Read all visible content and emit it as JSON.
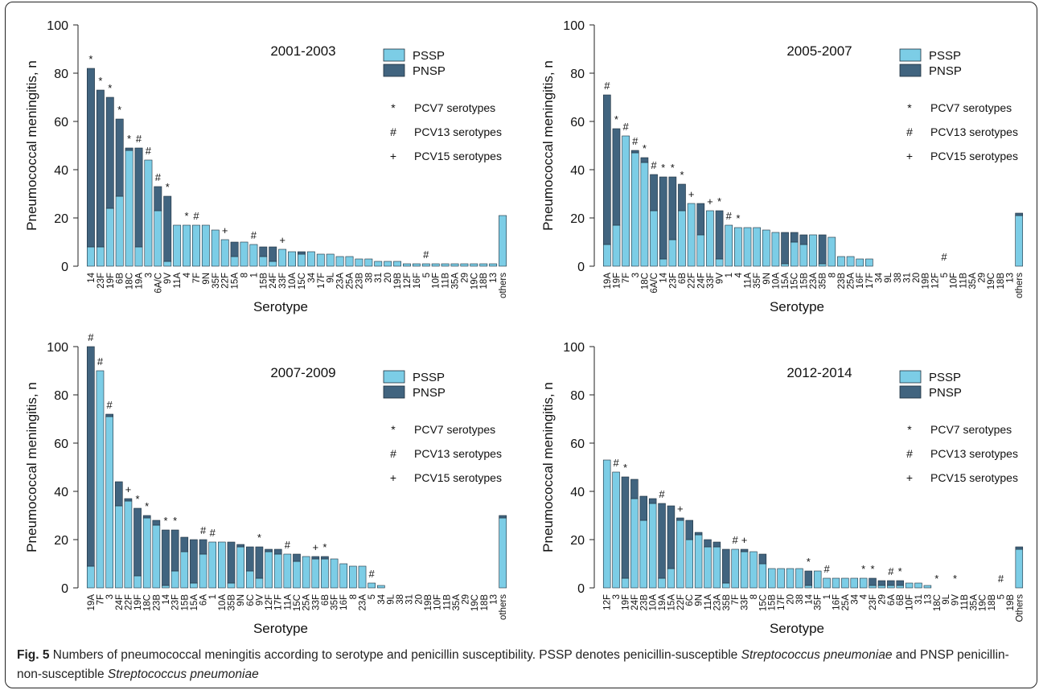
{
  "colors": {
    "pssp": "#7ccde6",
    "pnsp": "#41647f",
    "stroke": "#1f2f3d"
  },
  "caption": {
    "label": "Fig. 5",
    "p1": " Numbers of pneumococcal meningitis according to serotype and penicillin susceptibility. PSSP denotes penicillin-susceptible ",
    "i1": "Streptococcus pneumoniae",
    "p2": " and PNSP penicillin-non-susceptible ",
    "i2": "Streptococcus pneumoniae"
  },
  "chart_data": [
    {
      "type": "bar",
      "stacked": true,
      "title": "2001-2003",
      "xlabel": "Serotype",
      "ylabel": "Pneumococcal meningitis, n",
      "ylim": [
        0,
        100
      ],
      "yticks": [
        0,
        20,
        40,
        60,
        80,
        100
      ],
      "legend": {
        "series": [
          "PSSP",
          "PNSP"
        ],
        "markers": [
          {
            "sym": "*",
            "label": "PCV7 serotypes"
          },
          {
            "sym": "#",
            "label": "PCV13 serotypes"
          },
          {
            "sym": "+",
            "label": "PCV15 serotypes"
          }
        ]
      },
      "categories": [
        "14",
        "23F",
        "19F",
        "6B",
        "18C",
        "19A",
        "3",
        "6A/C",
        "9V",
        "11A",
        "4",
        "7F",
        "9N",
        "35F",
        "22F",
        "15A",
        "8",
        "1",
        "15B",
        "24F",
        "33F",
        "10A",
        "15C",
        "34",
        "17F",
        "9L",
        "23A",
        "25A",
        "23B",
        "38",
        "31",
        "20",
        "19B",
        "12F",
        "16F",
        "5",
        "10F",
        "11B",
        "35A",
        "29",
        "19C",
        "18B",
        "13",
        "others"
      ],
      "series": [
        {
          "name": "PSSP",
          "values": [
            8,
            8,
            24,
            29,
            48,
            8,
            44,
            23,
            2,
            17,
            17,
            17,
            17,
            15,
            11,
            4,
            10,
            9,
            4,
            2,
            7,
            6,
            5,
            6,
            5,
            5,
            4,
            4,
            3,
            3,
            2,
            2,
            2,
            1,
            1,
            1,
            1,
            1,
            1,
            1,
            1,
            1,
            1,
            21
          ]
        },
        {
          "name": "PNSP",
          "values": [
            74,
            65,
            46,
            32,
            1,
            41,
            0,
            10,
            27,
            0,
            0,
            0,
            0,
            0,
            0,
            6,
            0,
            0,
            4,
            6,
            0,
            0,
            1,
            0,
            0,
            0,
            0,
            0,
            0,
            0,
            0,
            0,
            0,
            0,
            0,
            0,
            0,
            0,
            0,
            0,
            0,
            0,
            0,
            0
          ]
        }
      ],
      "markers": [
        "*",
        "*",
        "*",
        "*",
        "*",
        "#",
        "#",
        "#",
        "*",
        "",
        "*",
        "#",
        "",
        "",
        "+",
        "",
        "",
        "#",
        "",
        "",
        "+",
        "",
        "",
        "",
        "",
        "",
        "",
        "",
        "",
        "",
        "",
        "",
        "",
        "",
        "",
        "#",
        "",
        "",
        "",
        "",
        "",
        "",
        "",
        ""
      ]
    },
    {
      "type": "bar",
      "stacked": true,
      "title": "2005-2007",
      "xlabel": "Serotype",
      "ylabel": "Pneumococcal meningitis, n",
      "ylim": [
        0,
        100
      ],
      "yticks": [
        0,
        20,
        40,
        60,
        80,
        100
      ],
      "legend": {
        "series": [
          "PSSP",
          "PNSP"
        ],
        "markers": [
          {
            "sym": "*",
            "label": "PCV7 serotypes"
          },
          {
            "sym": "#",
            "label": "PCV13 serotypes"
          },
          {
            "sym": "+",
            "label": "PCV15 serotypes"
          }
        ]
      },
      "categories": [
        "19A",
        "19F",
        "7F",
        "3",
        "18C",
        "6A/C",
        "14",
        "23F",
        "6B",
        "22F",
        "24F",
        "33F",
        "9V",
        "1",
        "4",
        "11A",
        "35F",
        "9N",
        "10A",
        "15A",
        "15C",
        "15B",
        "23A",
        "35B",
        "8",
        "23B",
        "25A",
        "16F",
        "17F",
        "34",
        "9L",
        "38",
        "31",
        "20",
        "19B",
        "12F",
        "5",
        "10F",
        "11B",
        "35A",
        "29",
        "19C",
        "18B",
        "13",
        "others"
      ],
      "series": [
        {
          "name": "PSSP",
          "values": [
            9,
            17,
            54,
            47,
            43,
            23,
            3,
            11,
            23,
            26,
            13,
            23,
            3,
            17,
            16,
            16,
            16,
            15,
            14,
            1,
            10,
            9,
            13,
            1,
            12,
            4,
            4,
            3,
            3,
            0,
            0,
            0,
            0,
            0,
            0,
            0,
            0,
            0,
            0,
            0,
            0,
            0,
            0,
            0,
            21
          ]
        },
        {
          "name": "PNSP",
          "values": [
            62,
            40,
            0,
            1,
            2,
            15,
            34,
            26,
            11,
            0,
            13,
            0,
            20,
            0,
            0,
            0,
            0,
            0,
            0,
            13,
            4,
            4,
            0,
            12,
            0,
            0,
            0,
            0,
            0,
            0,
            0,
            0,
            0,
            0,
            0,
            0,
            0,
            0,
            0,
            0,
            0,
            0,
            0,
            0,
            1
          ]
        }
      ],
      "markers": [
        "#",
        "*",
        "#",
        "#",
        "*",
        "#",
        "*",
        "*",
        "*",
        "+",
        "",
        "+",
        "*",
        "#",
        "*",
        "",
        "",
        "",
        "",
        "",
        "",
        "",
        "",
        "",
        "",
        "",
        "",
        "",
        "",
        "",
        "",
        "",
        "",
        "",
        "",
        "",
        "#",
        "",
        "",
        "",
        "",
        "",
        "",
        "",
        ""
      ]
    },
    {
      "type": "bar",
      "stacked": true,
      "title": "2007-2009",
      "xlabel": "Serotype",
      "ylabel": "Pneumococcal meningitis, n",
      "ylim": [
        0,
        100
      ],
      "yticks": [
        0,
        20,
        40,
        60,
        80,
        100
      ],
      "legend": {
        "series": [
          "PSSP",
          "PNSP"
        ],
        "markers": [
          {
            "sym": "*",
            "label": "PCV7 serotypes"
          },
          {
            "sym": "#",
            "label": "PCV13 serotypes"
          },
          {
            "sym": "+",
            "label": "PCV15 serotypes"
          }
        ]
      },
      "categories": [
        "19A",
        "7F",
        "3",
        "24F",
        "22F",
        "19F",
        "18C",
        "23B",
        "14",
        "23F",
        "15B",
        "15A",
        "6A",
        "1",
        "10A",
        "35B",
        "9N",
        "6C",
        "9V",
        "12F",
        "17F",
        "11A",
        "15C",
        "25A",
        "33F",
        "6B",
        "35F",
        "16F",
        "8",
        "23A",
        "5",
        "34",
        "9L",
        "38",
        "31",
        "20",
        "19B",
        "10F",
        "11B",
        "35A",
        "29",
        "19C",
        "18B",
        "13",
        "others"
      ],
      "series": [
        {
          "name": "PSSP",
          "values": [
            9,
            90,
            71,
            34,
            36,
            5,
            29,
            26,
            1,
            7,
            15,
            2,
            14,
            19,
            19,
            2,
            17,
            7,
            4,
            15,
            14,
            14,
            11,
            13,
            12,
            12,
            12,
            10,
            9,
            9,
            2,
            1,
            0,
            0,
            0,
            0,
            0,
            0,
            0,
            0,
            0,
            0,
            0,
            0,
            29
          ]
        },
        {
          "name": "PNSP",
          "values": [
            91,
            0,
            1,
            10,
            1,
            28,
            1,
            2,
            23,
            17,
            6,
            18,
            6,
            0,
            0,
            17,
            1,
            10,
            13,
            1,
            2,
            0,
            3,
            0,
            1,
            1,
            0,
            0,
            0,
            0,
            0,
            0,
            0,
            0,
            0,
            0,
            0,
            0,
            0,
            0,
            0,
            0,
            0,
            0,
            1
          ]
        }
      ],
      "markers": [
        "#",
        "#",
        "#",
        "",
        "+",
        "*",
        "*",
        "",
        "*",
        "*",
        "",
        "",
        "#",
        "#",
        "",
        "",
        "",
        "",
        "*",
        "",
        "",
        "#",
        "",
        "",
        "+",
        "*",
        "",
        "",
        "",
        "",
        "#",
        "",
        "",
        "",
        "",
        "",
        "",
        "",
        "",
        "",
        "",
        "",
        "",
        "",
        ""
      ]
    },
    {
      "type": "bar",
      "stacked": true,
      "title": "2012-2014",
      "xlabel": "Serotype",
      "ylabel": "Pneumococcal meningitis, n",
      "ylim": [
        0,
        100
      ],
      "yticks": [
        0,
        20,
        40,
        60,
        80,
        100
      ],
      "legend": {
        "series": [
          "PSSP",
          "PNSP"
        ],
        "markers": [
          {
            "sym": "*",
            "label": "PCV7 serotypes"
          },
          {
            "sym": "#",
            "label": "PCV13 serotypes"
          },
          {
            "sym": "+",
            "label": "PCV15 serotypes"
          }
        ]
      },
      "categories": [
        "12F",
        "3",
        "19F",
        "24F",
        "23B",
        "10A",
        "19A",
        "15A",
        "22F",
        "6C",
        "9N",
        "11A",
        "23A",
        "35B",
        "7F",
        "33F",
        "8",
        "15C",
        "15B",
        "17F",
        "20",
        "38",
        "14",
        "35F",
        "1",
        "16F",
        "25A",
        "34",
        "4",
        "23F",
        "29",
        "6A",
        "6B",
        "10F",
        "31",
        "13",
        "18C",
        "9L",
        "9V",
        "11B",
        "35A",
        "19C",
        "18B",
        "5",
        "19B",
        "Others"
      ],
      "series": [
        {
          "name": "PSSP",
          "values": [
            53,
            48,
            4,
            37,
            28,
            35,
            4,
            8,
            28,
            20,
            22,
            17,
            17,
            2,
            16,
            15,
            15,
            10,
            8,
            8,
            8,
            8,
            1,
            7,
            4,
            4,
            4,
            4,
            4,
            1,
            1,
            1,
            1,
            2,
            2,
            1,
            0,
            0,
            0,
            0,
            0,
            0,
            0,
            0,
            0,
            16
          ]
        },
        {
          "name": "PNSP",
          "values": [
            0,
            0,
            42,
            8,
            10,
            2,
            31,
            26,
            1,
            8,
            1,
            3,
            2,
            14,
            0,
            1,
            0,
            4,
            0,
            0,
            0,
            0,
            6,
            0,
            0,
            0,
            0,
            0,
            0,
            3,
            2,
            2,
            2,
            0,
            0,
            0,
            0,
            0,
            0,
            0,
            0,
            0,
            0,
            0,
            0,
            1
          ]
        }
      ],
      "markers": [
        "",
        "#",
        "*",
        "",
        "",
        "",
        "#",
        "",
        "+",
        "",
        "",
        "",
        "",
        "",
        "#",
        "+",
        "",
        "",
        "",
        "",
        "",
        "",
        "*",
        "",
        "#",
        "",
        "",
        "",
        "*",
        "*",
        "",
        "#",
        "*",
        "",
        "",
        "",
        "*",
        "",
        "*",
        "",
        "",
        "",
        "",
        "#",
        "",
        ""
      ]
    }
  ]
}
